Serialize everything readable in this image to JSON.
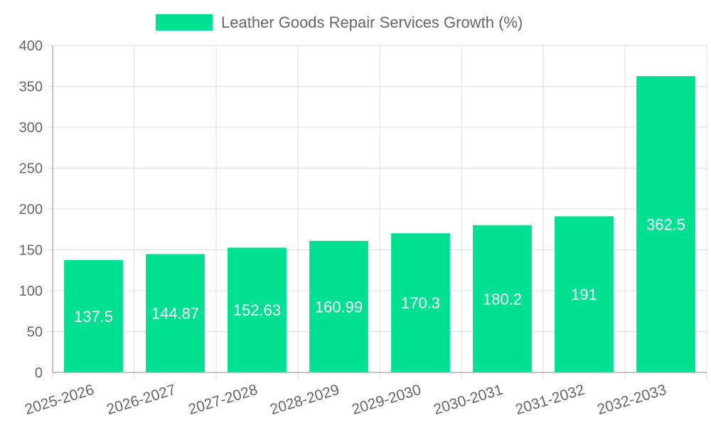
{
  "chart_data": {
    "type": "bar",
    "legend": {
      "label": "Leather Goods Repair Services Growth (%)",
      "position": "top-center"
    },
    "categories": [
      "2025-2026",
      "2026-2027",
      "2027-2028",
      "2028-2029",
      "2029-2030",
      "2030-2031",
      "2031-2032",
      "2032-2033"
    ],
    "series": [
      {
        "name": "Leather Goods Repair Services Growth (%)",
        "values": [
          137.5,
          144.87,
          152.63,
          160.99,
          170.3,
          180.2,
          191,
          362.5
        ],
        "color": "#00e092"
      }
    ],
    "data_labels": [
      "137.5",
      "144.87",
      "152.63",
      "160.99",
      "170.3",
      "180.2",
      "191",
      "362.5"
    ],
    "ylim": [
      0,
      400
    ],
    "y_ticks": [
      0,
      50,
      100,
      150,
      200,
      250,
      300,
      350,
      400
    ],
    "grid": true,
    "colors": {
      "bar": "#00e092",
      "grid": "#dcdcdc",
      "text": "#666666",
      "bar_label": "#ffffff"
    }
  }
}
